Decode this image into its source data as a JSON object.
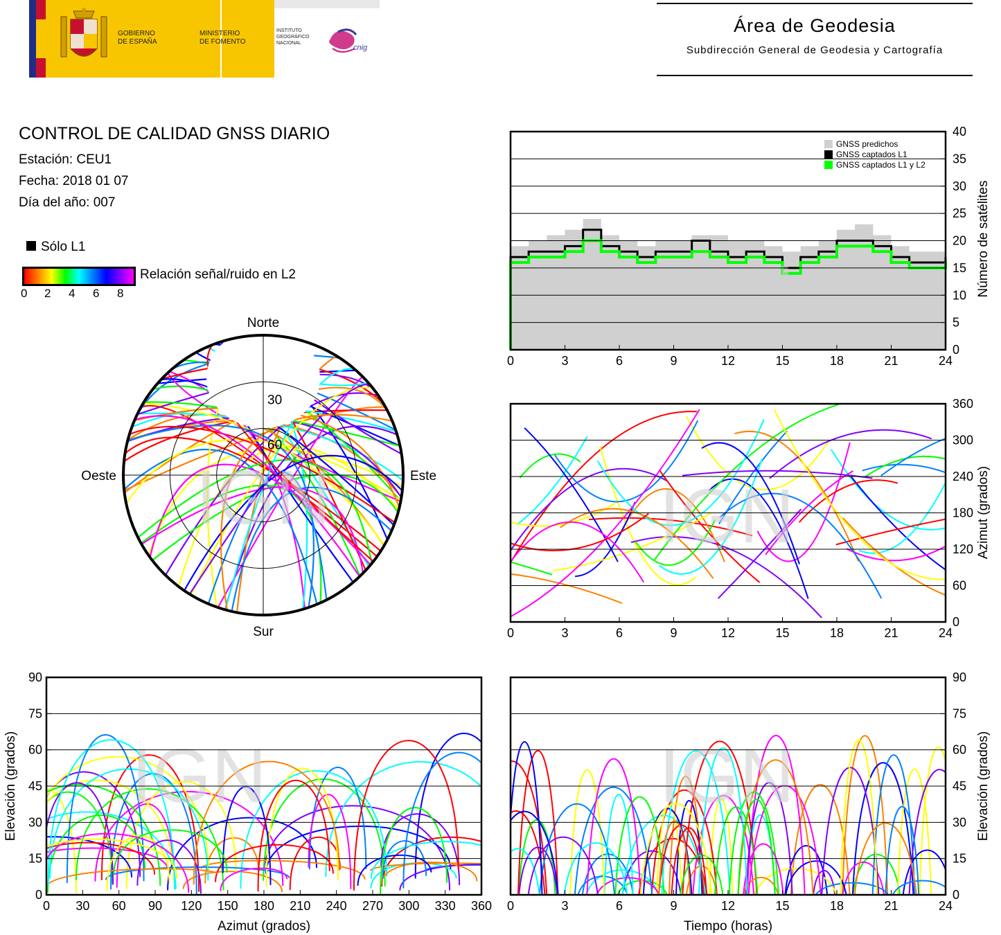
{
  "header": {
    "gov_line1": "GOBIERNO",
    "gov_line2": "DE ESPAÑA",
    "min_line1": "MINISTERIO",
    "min_line2": "DE FOMENTO",
    "ign_line1": "INSTITUTO",
    "ign_line2": "GEOGRÁFICO",
    "ign_line3": "NACIONAL",
    "cnig_text": "cnig",
    "area_title": "Área de Geodesia",
    "area_subtitle": "Subdirección General de Geodesia y Cartografía"
  },
  "info": {
    "title": "CONTROL DE CALIDAD GNSS DIARIO",
    "station": "Estación: CEU1",
    "date": "Fecha: 2018 01 07",
    "doy": "Día del año: 007"
  },
  "legend": {
    "l1_only": "Sólo L1",
    "snr_label": "Relación señal/ruido en L2",
    "snr_ticks": [
      "0",
      "2",
      "4",
      "6",
      "8"
    ],
    "snr_colors": [
      "#ff0000",
      "#ff8000",
      "#ffff00",
      "#00ff00",
      "#00ffff",
      "#0080ff",
      "#0000ff",
      "#8000ff",
      "#ff00ff"
    ]
  },
  "watermark": "IGN",
  "chart_data": [
    {
      "type": "area",
      "ylabel": "Número de satélites",
      "xlim": [
        0,
        24
      ],
      "ylim": [
        0,
        40
      ],
      "x_ticks": [
        "0",
        "3",
        "6",
        "9",
        "12",
        "15",
        "18",
        "21",
        "24"
      ],
      "y_ticks": [
        "0",
        "5",
        "10",
        "15",
        "20",
        "25",
        "30",
        "35",
        "40"
      ],
      "grid": true,
      "legend_position": "top-right",
      "series": [
        {
          "name": "GNSS predichos",
          "color": "#d0d0d0",
          "x": [
            0,
            1,
            2,
            3,
            4,
            5,
            6,
            7,
            8,
            9,
            10,
            11,
            12,
            13,
            14,
            15,
            16,
            17,
            18,
            19,
            20,
            21,
            22,
            23,
            24
          ],
          "values": [
            19,
            20,
            21,
            22,
            24,
            21,
            20,
            19,
            20,
            20,
            21,
            21,
            20,
            20,
            19,
            18,
            19,
            20,
            22,
            23,
            21,
            19,
            18,
            18,
            18
          ]
        },
        {
          "name": "GNSS captados L1",
          "color": "#000000",
          "x": [
            0,
            1,
            2,
            3,
            4,
            5,
            6,
            7,
            8,
            9,
            10,
            11,
            12,
            13,
            14,
            15,
            16,
            17,
            18,
            19,
            20,
            21,
            22,
            23,
            24
          ],
          "values": [
            17,
            18,
            18,
            19,
            22,
            19,
            18,
            17,
            18,
            18,
            20,
            18,
            17,
            18,
            17,
            15,
            17,
            18,
            20,
            20,
            19,
            17,
            16,
            16,
            17
          ]
        },
        {
          "name": "GNSS captados L1 y L2",
          "color": "#00ff00",
          "x": [
            0,
            1,
            2,
            3,
            4,
            5,
            6,
            7,
            8,
            9,
            10,
            11,
            12,
            13,
            14,
            15,
            16,
            17,
            18,
            19,
            20,
            21,
            22,
            23,
            24
          ],
          "values": [
            16,
            17,
            17,
            18,
            20,
            18,
            17,
            16,
            17,
            17,
            18,
            17,
            16,
            17,
            16,
            14,
            16,
            17,
            19,
            19,
            18,
            16,
            15,
            15,
            16
          ]
        }
      ]
    },
    {
      "type": "scatter",
      "ylabel": "Azimut (grados)",
      "xlim": [
        0,
        24
      ],
      "ylim": [
        0,
        360
      ],
      "x_ticks": [
        "0",
        "3",
        "6",
        "9",
        "12",
        "15",
        "18",
        "21",
        "24"
      ],
      "y_ticks": [
        "0",
        "60",
        "120",
        "180",
        "240",
        "300",
        "360"
      ],
      "grid": true
    },
    {
      "type": "polar",
      "labels": {
        "north": "Norte",
        "south": "Sur",
        "east": "Este",
        "west": "Oeste"
      },
      "rings": [
        "30",
        "60"
      ]
    },
    {
      "type": "scatter",
      "xlabel": "Azimut (grados)",
      "ylabel": "Elevación (grados)",
      "xlim": [
        0,
        360
      ],
      "ylim": [
        0,
        90
      ],
      "x_ticks": [
        "0",
        "30",
        "60",
        "90",
        "120",
        "150",
        "180",
        "210",
        "240",
        "270",
        "300",
        "330",
        "360"
      ],
      "y_ticks": [
        "0",
        "15",
        "30",
        "45",
        "60",
        "75",
        "90"
      ],
      "grid": true
    },
    {
      "type": "scatter",
      "xlabel": "Tiempo (horas)",
      "ylabel": "Elevación (grados)",
      "xlim": [
        0,
        24
      ],
      "ylim": [
        0,
        90
      ],
      "x_ticks": [
        "0",
        "3",
        "6",
        "9",
        "12",
        "15",
        "18",
        "21",
        "24"
      ],
      "y_ticks": [
        "0",
        "15",
        "30",
        "45",
        "60",
        "75",
        "90"
      ],
      "grid": true
    }
  ]
}
